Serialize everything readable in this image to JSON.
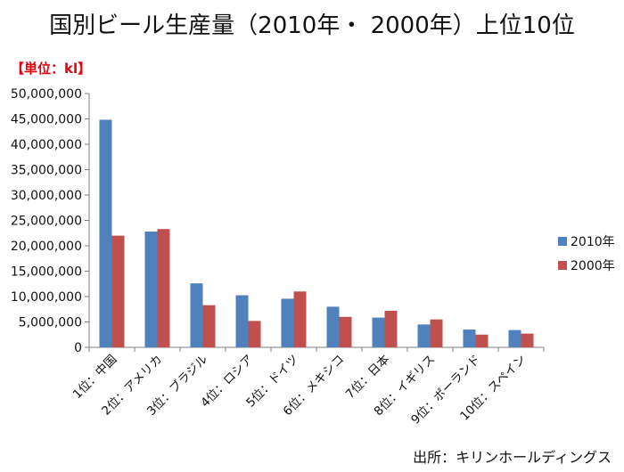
{
  "title": "国別ビール生産量（2010年・ 2000年）上位10位",
  "unit_label": "【単位：kl】",
  "source": "出所：キリンホールディングス",
  "colors": {
    "series_2010": "#4f81bd",
    "series_2000": "#c0504d",
    "axis": "#7f7f7f"
  },
  "chart_data": {
    "type": "bar",
    "categories": [
      "1位：中国",
      "2位：アメリカ",
      "3位：ブラジル",
      "4位：ロシア",
      "5位：ドイツ",
      "6位：メキシコ",
      "7位：日本",
      "8位：イギリス",
      "9位：ポーランド",
      "10位：スペイン"
    ],
    "series": [
      {
        "name": "2010年",
        "values": [
          44830000,
          22800000,
          12600000,
          10250000,
          9570000,
          8000000,
          5850000,
          4500000,
          3500000,
          3400000
        ]
      },
      {
        "name": "2000年",
        "values": [
          22000000,
          23300000,
          8300000,
          5200000,
          11000000,
          6000000,
          7200000,
          5500000,
          2500000,
          2700000
        ]
      }
    ],
    "yticks": [
      "0",
      "5,000,000",
      "10,000,000",
      "15,000,000",
      "20,000,000",
      "25,000,000",
      "30,000,000",
      "35,000,000",
      "40,000,000",
      "45,000,000",
      "50,000,000"
    ],
    "ylim": [
      0,
      50000000
    ],
    "grid": false,
    "legend_position": "right"
  }
}
